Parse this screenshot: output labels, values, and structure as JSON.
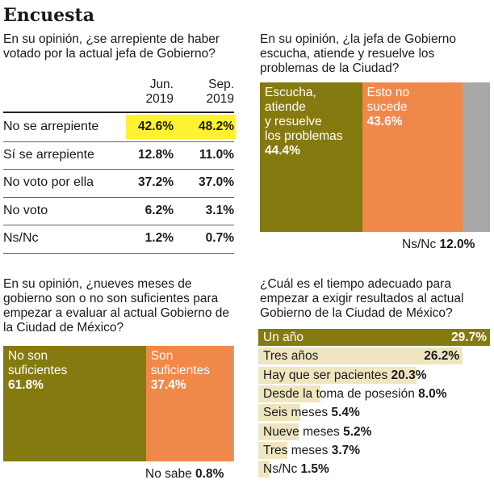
{
  "title": "Encuesta",
  "colors": {
    "olive": "#857a0f",
    "orange": "#f0884a",
    "gray": "#a8a8a8",
    "yellow": "#fff230",
    "pale": "#efe6c0"
  },
  "chart_data": [
    {
      "type": "table",
      "question": "En su opinión, ¿se arrepiente de haber votado por la actual jefa de Gobierno?",
      "columns": [
        "Jun. 2019",
        "Sep. 2019"
      ],
      "column_parts": [
        [
          "Jun.",
          "2019"
        ],
        [
          "Sep.",
          "2019"
        ]
      ],
      "rows": [
        {
          "label": "No se arrepiente",
          "values": [
            "42.6%",
            "48.2%"
          ],
          "highlight": true
        },
        {
          "label": "Sí se arrepiente",
          "values": [
            "12.8%",
            "11.0%"
          ]
        },
        {
          "label": "No voto por ella",
          "values": [
            "37.2%",
            "37.0%"
          ]
        },
        {
          "label": "No voto",
          "values": [
            "6.2%",
            "3.1%"
          ]
        },
        {
          "label": "Ns/Nc",
          "values": [
            "1.2%",
            "0.7%"
          ]
        }
      ]
    },
    {
      "type": "bar",
      "stacked": true,
      "question": "En su opinión, ¿la jefa de Gobierno escucha, atiende y resuelve los problemas de la Ciudad?",
      "series": [
        {
          "name": "Escucha, atiende y resuelve los problemas",
          "value": 44.4,
          "label": "44.4%",
          "lines": [
            "Escucha,",
            "atiende",
            "y resuelve",
            "los problemas"
          ]
        },
        {
          "name": "Esto no sucede",
          "value": 43.6,
          "label": "43.6%",
          "lines": [
            "Esto no",
            "sucede"
          ]
        },
        {
          "name": "Ns/Nc",
          "value": 12.0,
          "label": "12.0%"
        }
      ]
    },
    {
      "type": "bar",
      "stacked": true,
      "question": "En su opinión, ¿nueves meses de gobierno son o no son suficientes para empezar a evaluar al actual Gobierno de la Ciudad de México?",
      "series": [
        {
          "name": "No son suficientes",
          "value": 61.8,
          "label": "61.8%",
          "lines": [
            "No son",
            "suficientes"
          ]
        },
        {
          "name": "Son suficientes",
          "value": 37.4,
          "label": "37.4%",
          "lines": [
            "Son",
            "suficientes"
          ]
        },
        {
          "name": "No sabe",
          "value": 0.8,
          "label": "0.8%"
        }
      ]
    },
    {
      "type": "bar",
      "orientation": "horizontal",
      "question": "¿Cuál es el tiempo adecuado para empezar a exigir resultados al actual Gobierno de la Ciudad de México?",
      "categories": [
        "Un año",
        "Tres años",
        "Hay que ser pacientes",
        "Desde la toma de posesión",
        "Seis meses",
        "Nueve meses",
        "Tres meses",
        "Ns/Nc"
      ],
      "values": [
        29.7,
        26.2,
        20.3,
        8.0,
        5.4,
        5.2,
        3.7,
        1.5
      ],
      "labels": [
        "29.7%",
        "26.2%",
        "20.3%",
        "8.0%",
        "5.4%",
        "5.2%",
        "3.7%",
        "1.5%"
      ]
    }
  ]
}
